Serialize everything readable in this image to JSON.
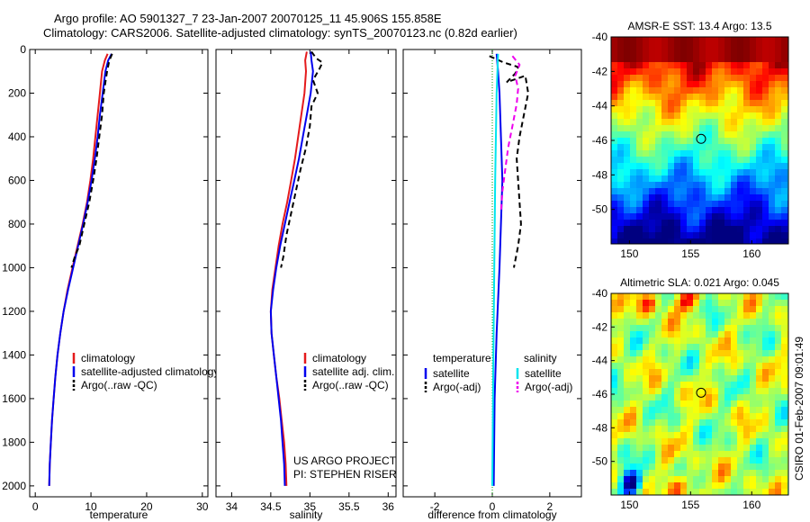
{
  "header": {
    "line1": "Argo profile: AO 5901327_7 23-Jan-2007 20070125_11 45.906S 155.858E",
    "line2": "Climatology: CARS2006. Satellite-adjusted climatology: synTS_20070123.nc (0.82d earlier)"
  },
  "side_label": "CSIRO 01-Feb-2007 09:01:49",
  "colors": {
    "red": "#e41a1c",
    "blue": "#0000ee",
    "black": "#000000",
    "cyan": "#00e5ee",
    "magenta": "#ee00ee"
  },
  "chart_data": [
    {
      "id": "temperature",
      "type": "line",
      "xlabel": "temperature",
      "xlim": [
        -1,
        31
      ],
      "ylim": [
        0,
        2050
      ],
      "y_reversed": true,
      "xticks": [
        "0",
        "10",
        "20",
        "30"
      ],
      "yticks": [
        "0",
        "200",
        "400",
        "600",
        "800",
        "1000",
        "1200",
        "1400",
        "1600",
        "1800",
        "2000"
      ],
      "legend": [
        "climatology",
        "satellite-adjusted climatology",
        "Argo(..raw -QC)"
      ],
      "series": [
        {
          "name": "climatology",
          "color": "red",
          "dash": false,
          "points": [
            [
              13.0,
              20
            ],
            [
              12.5,
              50
            ],
            [
              12.0,
              100
            ],
            [
              11.6,
              200
            ],
            [
              11.2,
              300
            ],
            [
              10.8,
              400
            ],
            [
              10.4,
              500
            ],
            [
              9.9,
              600
            ],
            [
              9.3,
              700
            ],
            [
              8.5,
              800
            ],
            [
              7.6,
              900
            ],
            [
              6.7,
              1000
            ],
            [
              5.8,
              1100
            ],
            [
              5.1,
              1200
            ],
            [
              4.5,
              1300
            ],
            [
              4.0,
              1400
            ],
            [
              3.6,
              1500
            ],
            [
              3.3,
              1600
            ],
            [
              3.0,
              1700
            ],
            [
              2.8,
              1800
            ],
            [
              2.6,
              1900
            ],
            [
              2.5,
              2000
            ]
          ]
        },
        {
          "name": "satellite-adjusted climatology",
          "color": "blue",
          "dash": false,
          "points": [
            [
              13.7,
              20
            ],
            [
              13.1,
              50
            ],
            [
              12.6,
              100
            ],
            [
              12.1,
              200
            ],
            [
              11.6,
              300
            ],
            [
              11.2,
              400
            ],
            [
              10.7,
              500
            ],
            [
              10.1,
              600
            ],
            [
              9.4,
              700
            ],
            [
              8.6,
              800
            ],
            [
              7.7,
              900
            ],
            [
              6.8,
              1000
            ],
            [
              5.9,
              1100
            ],
            [
              5.1,
              1200
            ],
            [
              4.5,
              1300
            ],
            [
              4.0,
              1400
            ],
            [
              3.6,
              1500
            ],
            [
              3.3,
              1600
            ],
            [
              3.0,
              1700
            ],
            [
              2.8,
              1800
            ],
            [
              2.6,
              1900
            ],
            [
              2.5,
              2000
            ]
          ]
        },
        {
          "name": "Argo(..raw -QC)",
          "color": "black",
          "dash": true,
          "points": [
            [
              13.8,
              20
            ],
            [
              13.3,
              50
            ],
            [
              12.9,
              100
            ],
            [
              12.6,
              150
            ],
            [
              12.3,
              200
            ],
            [
              12.0,
              300
            ],
            [
              11.5,
              400
            ],
            [
              11.0,
              500
            ],
            [
              10.4,
              600
            ],
            [
              9.7,
              700
            ],
            [
              8.8,
              800
            ],
            [
              7.9,
              900
            ],
            [
              7.1,
              950
            ],
            [
              6.5,
              1000
            ]
          ]
        }
      ]
    },
    {
      "id": "salinity",
      "type": "line",
      "xlabel": "salinity",
      "xlim": [
        33.8,
        36.1
      ],
      "ylim": [
        0,
        2050
      ],
      "y_reversed": true,
      "xticks": [
        "34",
        "34.5",
        "35",
        "35.5",
        "36"
      ],
      "legend": [
        "climatology",
        "satellite adj. clim.",
        "Argo(..raw -QC)"
      ],
      "annotation": [
        "US ARGO PROJECT",
        "PI: STEPHEN RISER"
      ],
      "series": [
        {
          "name": "climatology",
          "color": "red",
          "dash": false,
          "points": [
            [
              34.96,
              10
            ],
            [
              34.94,
              50
            ],
            [
              34.95,
              100
            ],
            [
              34.93,
              200
            ],
            [
              34.89,
              300
            ],
            [
              34.85,
              400
            ],
            [
              34.81,
              500
            ],
            [
              34.76,
              600
            ],
            [
              34.71,
              700
            ],
            [
              34.65,
              800
            ],
            [
              34.6,
              900
            ],
            [
              34.56,
              1000
            ],
            [
              34.52,
              1100
            ],
            [
              34.5,
              1200
            ],
            [
              34.51,
              1300
            ],
            [
              34.54,
              1400
            ],
            [
              34.57,
              1500
            ],
            [
              34.61,
              1600
            ],
            [
              34.64,
              1700
            ],
            [
              34.67,
              1800
            ],
            [
              34.69,
              1900
            ],
            [
              34.7,
              2000
            ]
          ]
        },
        {
          "name": "satellite adj. clim.",
          "color": "blue",
          "dash": false,
          "points": [
            [
              35.01,
              10
            ],
            [
              35.02,
              50
            ],
            [
              35.04,
              100
            ],
            [
              35.01,
              200
            ],
            [
              34.96,
              300
            ],
            [
              34.91,
              400
            ],
            [
              34.86,
              500
            ],
            [
              34.8,
              600
            ],
            [
              34.74,
              700
            ],
            [
              34.68,
              800
            ],
            [
              34.62,
              900
            ],
            [
              34.57,
              1000
            ],
            [
              34.53,
              1100
            ],
            [
              34.5,
              1200
            ],
            [
              34.51,
              1300
            ],
            [
              34.54,
              1400
            ],
            [
              34.57,
              1500
            ],
            [
              34.6,
              1600
            ],
            [
              34.63,
              1700
            ],
            [
              34.65,
              1800
            ],
            [
              34.67,
              1900
            ],
            [
              34.68,
              2000
            ]
          ]
        },
        {
          "name": "Argo(..raw -QC)",
          "color": "black",
          "dash": true,
          "points": [
            [
              35.02,
              10
            ],
            [
              35.08,
              40
            ],
            [
              35.16,
              60
            ],
            [
              35.12,
              90
            ],
            [
              35.04,
              140
            ],
            [
              35.1,
              200
            ],
            [
              35.02,
              260
            ],
            [
              35.0,
              350
            ],
            [
              34.95,
              450
            ],
            [
              34.88,
              550
            ],
            [
              34.82,
              650
            ],
            [
              34.76,
              750
            ],
            [
              34.7,
              850
            ],
            [
              34.66,
              950
            ],
            [
              34.63,
              1000
            ]
          ]
        }
      ]
    },
    {
      "id": "difference",
      "type": "line",
      "xlabel": "difference from climatology",
      "xlim": [
        -3.1,
        3.1
      ],
      "ylim": [
        0,
        2050
      ],
      "y_reversed": true,
      "xticks": [
        "-2",
        "0",
        "2"
      ],
      "legend_headers": [
        "temperature",
        "salinity"
      ],
      "legend": [
        "satellite",
        "Argo(-adj)",
        "satellite",
        "Argo(-adj)"
      ],
      "series": [
        {
          "name": "temperature satellite",
          "color": "blue",
          "dash": false,
          "points": [
            [
              0.15,
              20
            ],
            [
              0.2,
              100
            ],
            [
              0.25,
              200
            ],
            [
              0.3,
              400
            ],
            [
              0.35,
              600
            ],
            [
              0.3,
              800
            ],
            [
              0.25,
              1000
            ],
            [
              0.15,
              1300
            ],
            [
              0.08,
              1600
            ],
            [
              0.05,
              2000
            ]
          ]
        },
        {
          "name": "temperature Argo(-adj)",
          "color": "black",
          "dash": true,
          "points": [
            [
              -0.1,
              30
            ],
            [
              0.4,
              60
            ],
            [
              0.9,
              80
            ],
            [
              0.8,
              110
            ],
            [
              0.5,
              150
            ],
            [
              1.15,
              120
            ],
            [
              1.25,
              200
            ],
            [
              1.1,
              300
            ],
            [
              0.95,
              400
            ],
            [
              0.85,
              500
            ],
            [
              0.9,
              600
            ],
            [
              0.95,
              700
            ],
            [
              1.0,
              800
            ],
            [
              0.9,
              900
            ],
            [
              0.75,
              1000
            ]
          ]
        },
        {
          "name": "salinity satellite",
          "color": "cyan",
          "dash": false,
          "points": [
            [
              0.2,
              20
            ],
            [
              0.15,
              200
            ],
            [
              0.1,
              600
            ],
            [
              0.07,
              1000
            ],
            [
              0.03,
              1500
            ],
            [
              0.0,
              2000
            ]
          ]
        },
        {
          "name": "salinity Argo(-adj)",
          "color": "magenta",
          "dash": true,
          "points": [
            [
              0.7,
              30
            ],
            [
              0.95,
              70
            ],
            [
              0.8,
              120
            ],
            [
              0.9,
              180
            ],
            [
              0.85,
              250
            ],
            [
              0.7,
              350
            ],
            [
              0.55,
              450
            ],
            [
              0.45,
              550
            ],
            [
              0.35,
              650
            ],
            [
              0.3,
              750
            ]
          ]
        }
      ]
    },
    {
      "id": "sst-map",
      "type": "heatmap",
      "title": "AMSR-E SST: 13.4  Argo: 13.5",
      "xlim": [
        148.5,
        163
      ],
      "ylim": [
        -52,
        -40
      ],
      "xticks": [
        "150",
        "155",
        "160"
      ],
      "yticks": [
        "-40",
        "-42",
        "-44",
        "-46",
        "-48",
        "-50"
      ],
      "marker": [
        155.86,
        -45.91
      ]
    },
    {
      "id": "sla-map",
      "type": "heatmap",
      "title": "Altimetric SLA: 0.021  Argo: 0.045",
      "xlim": [
        148.5,
        163
      ],
      "ylim": [
        -52,
        -40
      ],
      "xticks": [
        "150",
        "155",
        "160"
      ],
      "yticks": [
        "-40",
        "-42",
        "-44",
        "-46",
        "-48",
        "-50"
      ],
      "marker": [
        155.86,
        -45.91
      ]
    }
  ]
}
